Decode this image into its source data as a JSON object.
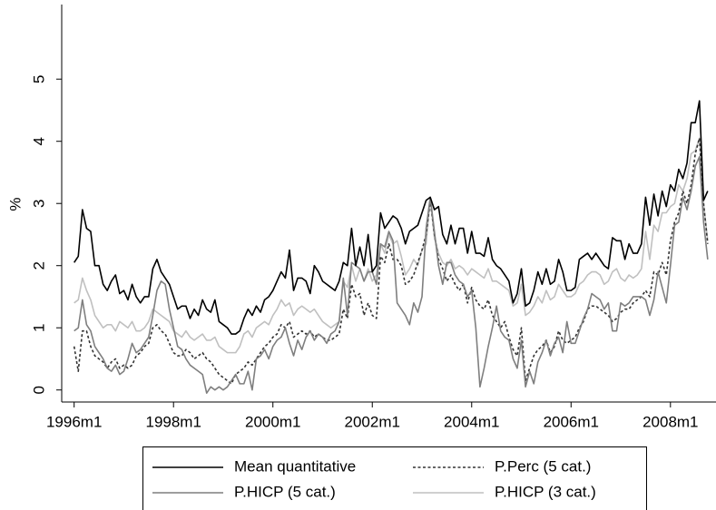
{
  "chart_data": {
    "type": "line",
    "y_label": "%",
    "x": [
      432,
      433,
      434,
      435,
      436,
      437,
      438,
      439,
      440,
      441,
      442,
      443,
      444,
      445,
      446,
      447,
      448,
      449,
      450,
      451,
      452,
      453,
      454,
      455,
      456,
      457,
      458,
      459,
      460,
      461,
      462,
      463,
      464,
      465,
      466,
      467,
      468,
      469,
      470,
      471,
      472,
      473,
      474,
      475,
      476,
      477,
      478,
      479,
      480,
      481,
      482,
      483,
      484,
      485,
      486,
      487,
      488,
      489,
      490,
      491,
      492,
      493,
      494,
      495,
      496,
      497,
      498,
      499,
      500,
      501,
      502,
      503,
      504,
      505,
      506,
      507,
      508,
      509,
      510,
      511,
      512,
      513,
      514,
      515,
      516,
      517,
      518,
      519,
      520,
      521,
      522,
      523,
      524,
      525,
      526,
      527,
      528,
      529,
      530,
      531,
      532,
      533,
      534,
      535,
      536,
      537,
      538,
      539,
      540,
      541,
      542,
      543,
      544,
      545,
      546,
      547,
      548,
      549,
      550,
      551,
      552,
      553,
      554,
      555,
      556,
      557,
      558,
      559,
      560,
      561,
      562,
      563,
      564,
      565,
      566,
      567,
      568,
      569,
      570,
      571,
      572,
      573,
      574,
      575,
      576,
      577,
      578,
      579,
      580,
      581,
      582,
      583,
      584,
      585
    ],
    "xlim": [
      429,
      587
    ],
    "xticks": [
      {
        "value": 432,
        "label": "1996m1"
      },
      {
        "value": 456,
        "label": "1998m1"
      },
      {
        "value": 480,
        "label": "2000m1"
      },
      {
        "value": 504,
        "label": "2002m1"
      },
      {
        "value": 528,
        "label": "2004m1"
      },
      {
        "value": 552,
        "label": "2006m1"
      },
      {
        "value": 576,
        "label": "2008m1"
      }
    ],
    "ylim": [
      -0.15,
      6.2
    ],
    "yticks": [
      0,
      1,
      2,
      3,
      4,
      5
    ],
    "grid": false,
    "series": [
      {
        "name": "Mean quantitative",
        "color": "#000000",
        "line_style": "solid",
        "values": [
          2.05,
          2.15,
          2.9,
          2.6,
          2.55,
          2.0,
          2.0,
          1.7,
          1.6,
          1.75,
          1.85,
          1.55,
          1.6,
          1.45,
          1.7,
          1.5,
          1.4,
          1.5,
          1.5,
          1.95,
          2.1,
          1.9,
          1.8,
          1.7,
          1.5,
          1.3,
          1.35,
          1.35,
          1.15,
          1.3,
          1.2,
          1.45,
          1.3,
          1.25,
          1.45,
          1.1,
          1.05,
          1.0,
          0.9,
          0.9,
          0.95,
          1.15,
          1.3,
          1.2,
          1.35,
          1.25,
          1.45,
          1.5,
          1.6,
          1.75,
          1.9,
          1.8,
          2.25,
          1.6,
          1.8,
          1.8,
          1.75,
          1.55,
          2.0,
          1.9,
          1.75,
          1.7,
          1.65,
          1.6,
          1.75,
          2.05,
          2.0,
          2.6,
          2.0,
          2.3,
          2.0,
          2.5,
          1.9,
          2.0,
          2.85,
          2.6,
          2.7,
          2.8,
          2.75,
          2.6,
          2.35,
          2.55,
          2.6,
          2.65,
          2.85,
          3.05,
          3.1,
          2.9,
          2.95,
          2.5,
          2.35,
          2.65,
          2.35,
          2.6,
          2.6,
          2.2,
          2.55,
          2.2,
          2.2,
          2.15,
          2.45,
          2.1,
          2.0,
          1.95,
          1.85,
          1.75,
          1.4,
          1.55,
          1.95,
          1.35,
          1.4,
          1.6,
          1.9,
          1.7,
          1.95,
          1.7,
          1.75,
          2.1,
          1.9,
          1.6,
          1.6,
          1.65,
          2.1,
          2.15,
          2.2,
          2.1,
          2.2,
          2.1,
          2.0,
          1.95,
          2.45,
          2.4,
          2.4,
          2.1,
          2.35,
          2.2,
          2.2,
          2.35,
          3.1,
          2.65,
          3.15,
          2.8,
          3.2,
          2.95,
          3.3,
          3.2,
          3.55,
          3.4,
          3.65,
          4.3,
          4.3,
          4.65,
          3.05,
          3.2
        ]
      },
      {
        "name": "P.Perc (5 cat.)",
        "color": "#333333",
        "line_style": "dotted",
        "values": [
          0.7,
          0.3,
          0.95,
          0.95,
          0.7,
          0.55,
          0.5,
          0.45,
          0.35,
          0.45,
          0.5,
          0.35,
          0.4,
          0.35,
          0.4,
          0.55,
          0.6,
          0.7,
          0.75,
          1.0,
          1.05,
          0.95,
          0.9,
          0.75,
          0.6,
          0.55,
          0.55,
          0.65,
          0.6,
          0.5,
          0.55,
          0.6,
          0.5,
          0.45,
          0.35,
          0.25,
          0.2,
          0.15,
          0.1,
          0.25,
          0.3,
          0.35,
          0.45,
          0.4,
          0.5,
          0.6,
          0.7,
          0.75,
          0.85,
          0.9,
          1.05,
          1.0,
          1.1,
          0.85,
          0.9,
          0.95,
          0.9,
          0.95,
          0.85,
          0.9,
          0.85,
          0.8,
          0.8,
          0.85,
          0.9,
          1.3,
          1.15,
          1.7,
          1.5,
          1.55,
          1.2,
          1.4,
          1.2,
          1.15,
          2.15,
          2.05,
          2.35,
          2.1,
          2.1,
          2.0,
          1.7,
          1.75,
          1.85,
          2.05,
          2.25,
          2.5,
          3.05,
          2.5,
          2.1,
          1.95,
          1.75,
          1.85,
          1.7,
          1.6,
          1.7,
          1.4,
          1.65,
          1.45,
          1.35,
          1.3,
          1.45,
          1.2,
          1.1,
          1.0,
          1.1,
          0.85,
          0.65,
          0.55,
          1.0,
          0.15,
          0.35,
          0.55,
          0.65,
          0.7,
          0.8,
          0.6,
          0.7,
          0.95,
          0.8,
          0.75,
          0.8,
          0.85,
          1.0,
          1.1,
          1.3,
          1.35,
          1.35,
          1.3,
          1.25,
          1.2,
          1.1,
          1.15,
          1.25,
          1.3,
          1.3,
          1.4,
          1.45,
          1.5,
          1.6,
          1.5,
          1.9,
          1.85,
          2.05,
          1.85,
          2.4,
          2.7,
          2.85,
          3.2,
          3.0,
          3.3,
          3.8,
          4.05,
          3.0,
          2.35
        ]
      },
      {
        "name": "P.HICP (5 cat.)",
        "color": "#7f7f7f",
        "line_style": "solid",
        "values": [
          0.95,
          1.0,
          1.45,
          1.05,
          0.95,
          0.7,
          0.6,
          0.5,
          0.35,
          0.3,
          0.4,
          0.25,
          0.3,
          0.5,
          0.75,
          0.6,
          0.65,
          0.75,
          0.85,
          1.2,
          1.6,
          1.75,
          1.7,
          1.3,
          1.0,
          0.7,
          0.65,
          0.5,
          0.4,
          0.35,
          0.3,
          0.25,
          -0.05,
          0.05,
          0.0,
          0.05,
          0.0,
          0.05,
          0.15,
          0.25,
          0.1,
          0.1,
          0.3,
          0.0,
          0.5,
          0.55,
          0.65,
          0.5,
          0.7,
          0.8,
          0.85,
          1.0,
          0.75,
          0.55,
          0.8,
          0.65,
          0.85,
          0.95,
          0.8,
          0.9,
          0.85,
          0.75,
          0.9,
          0.95,
          1.1,
          1.8,
          1.2,
          2.05,
          2.0,
          1.95,
          1.75,
          1.9,
          1.9,
          1.7,
          2.35,
          2.3,
          2.55,
          2.4,
          1.4,
          1.3,
          1.2,
          1.05,
          1.4,
          1.25,
          1.5,
          2.6,
          3.1,
          2.55,
          2.0,
          1.7,
          2.05,
          2.05,
          1.85,
          1.75,
          1.7,
          1.5,
          1.6,
          1.0,
          0.05,
          0.35,
          0.7,
          1.0,
          1.35,
          0.95,
          0.85,
          0.8,
          0.5,
          0.35,
          0.8,
          0.05,
          0.3,
          0.1,
          0.45,
          0.6,
          0.8,
          0.55,
          0.75,
          0.85,
          0.6,
          1.1,
          0.75,
          0.75,
          0.95,
          1.15,
          1.3,
          1.55,
          1.5,
          1.45,
          1.3,
          1.4,
          0.95,
          0.95,
          1.4,
          1.35,
          1.4,
          1.5,
          1.5,
          1.5,
          1.45,
          1.2,
          1.45,
          1.9,
          1.65,
          1.4,
          2.0,
          2.65,
          2.7,
          3.1,
          2.9,
          3.2,
          3.6,
          3.75,
          2.7,
          2.1
        ]
      },
      {
        "name": "P.HICP (3 cat.)",
        "color": "#c0c0c0",
        "line_style": "solid",
        "values": [
          1.4,
          1.45,
          1.8,
          1.6,
          1.45,
          1.2,
          1.1,
          1.0,
          1.05,
          1.05,
          0.95,
          1.1,
          1.05,
          1.0,
          1.1,
          0.95,
          0.95,
          1.0,
          1.1,
          1.3,
          1.25,
          1.2,
          1.15,
          1.1,
          0.95,
          0.9,
          0.85,
          0.95,
          0.85,
          0.8,
          0.85,
          0.9,
          0.8,
          0.8,
          0.85,
          0.7,
          0.65,
          0.6,
          0.6,
          0.6,
          0.7,
          0.9,
          0.95,
          0.85,
          1.0,
          1.05,
          1.1,
          1.05,
          1.2,
          1.3,
          1.45,
          1.35,
          1.4,
          1.2,
          1.3,
          1.35,
          1.3,
          1.25,
          1.3,
          1.2,
          1.1,
          1.05,
          1.0,
          1.05,
          1.1,
          1.75,
          1.65,
          2.0,
          1.75,
          1.95,
          1.75,
          1.95,
          1.75,
          1.85,
          2.35,
          2.2,
          2.5,
          2.35,
          2.4,
          2.15,
          1.85,
          1.95,
          2.1,
          2.0,
          2.25,
          2.35,
          3.1,
          2.45,
          2.2,
          2.05,
          2.0,
          2.1,
          1.95,
          2.0,
          1.95,
          1.85,
          1.95,
          1.9,
          1.85,
          1.8,
          1.95,
          1.75,
          1.75,
          1.7,
          1.65,
          1.6,
          1.35,
          1.4,
          1.7,
          1.2,
          1.25,
          1.35,
          1.5,
          1.4,
          1.6,
          1.45,
          1.5,
          1.7,
          1.6,
          1.5,
          1.5,
          1.55,
          1.7,
          1.75,
          1.85,
          1.9,
          1.9,
          1.85,
          1.7,
          1.75,
          1.9,
          1.95,
          1.8,
          1.75,
          1.85,
          1.8,
          1.85,
          1.95,
          2.55,
          2.1,
          2.65,
          2.55,
          2.85,
          2.85,
          2.95,
          3.0,
          3.3,
          3.2,
          3.4,
          3.8,
          3.85,
          4.05,
          3.0,
          2.4
        ]
      }
    ]
  }
}
